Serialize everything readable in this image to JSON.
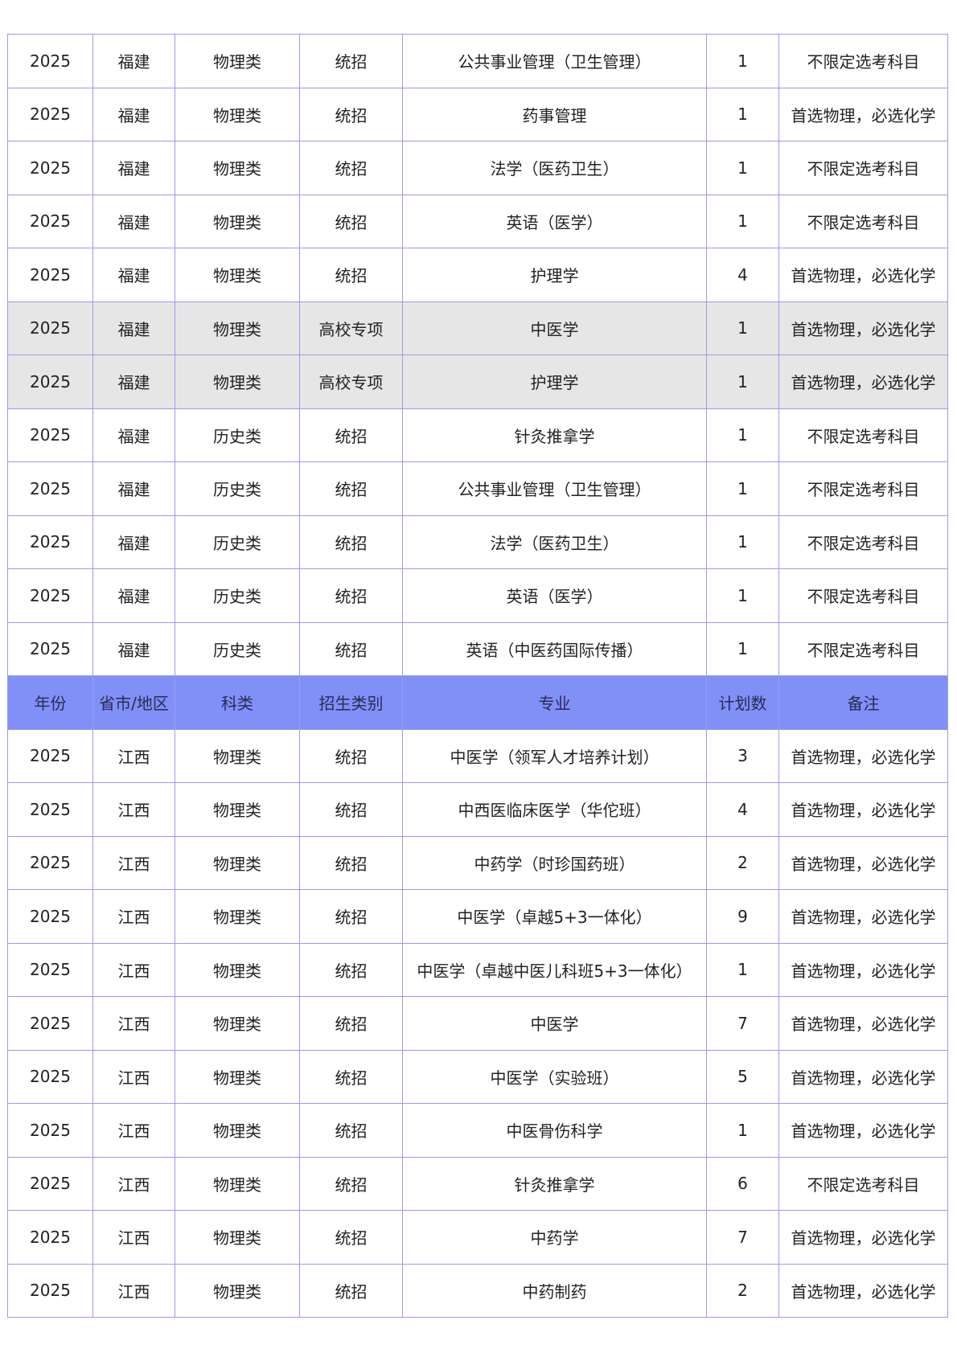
{
  "header_row": [
    "年份",
    "省市/地区",
    "科类",
    "招生类别",
    "专业",
    "计划数",
    "备注"
  ],
  "colors": {
    "header_bg": "#8190f7",
    "highlight_row_bg": "#e6e6e6",
    "border": "#9a9af0"
  },
  "rows_before_header": [
    {
      "cells": [
        "2025",
        "福建",
        "物理类",
        "统招",
        "公共事业管理（卫生管理）",
        "1",
        "不限定选考科目"
      ],
      "highlighted": false
    },
    {
      "cells": [
        "2025",
        "福建",
        "物理类",
        "统招",
        "药事管理",
        "1",
        "首选物理，必选化学"
      ],
      "highlighted": false
    },
    {
      "cells": [
        "2025",
        "福建",
        "物理类",
        "统招",
        "法学（医药卫生）",
        "1",
        "不限定选考科目"
      ],
      "highlighted": false
    },
    {
      "cells": [
        "2025",
        "福建",
        "物理类",
        "统招",
        "英语（医学）",
        "1",
        "不限定选考科目"
      ],
      "highlighted": false
    },
    {
      "cells": [
        "2025",
        "福建",
        "物理类",
        "统招",
        "护理学",
        "4",
        "首选物理，必选化学"
      ],
      "highlighted": false
    },
    {
      "cells": [
        "2025",
        "福建",
        "物理类",
        "高校专项",
        "中医学",
        "1",
        "首选物理，必选化学"
      ],
      "highlighted": true
    },
    {
      "cells": [
        "2025",
        "福建",
        "物理类",
        "高校专项",
        "护理学",
        "1",
        "首选物理，必选化学"
      ],
      "highlighted": true
    },
    {
      "cells": [
        "2025",
        "福建",
        "历史类",
        "统招",
        "针灸推拿学",
        "1",
        "不限定选考科目"
      ],
      "highlighted": false
    },
    {
      "cells": [
        "2025",
        "福建",
        "历史类",
        "统招",
        "公共事业管理（卫生管理）",
        "1",
        "不限定选考科目"
      ],
      "highlighted": false
    },
    {
      "cells": [
        "2025",
        "福建",
        "历史类",
        "统招",
        "法学（医药卫生）",
        "1",
        "不限定选考科目"
      ],
      "highlighted": false
    },
    {
      "cells": [
        "2025",
        "福建",
        "历史类",
        "统招",
        "英语（医学）",
        "1",
        "不限定选考科目"
      ],
      "highlighted": false
    },
    {
      "cells": [
        "2025",
        "福建",
        "历史类",
        "统招",
        "英语（中医药国际传播）",
        "1",
        "不限定选考科目"
      ],
      "highlighted": false
    }
  ],
  "rows_after_header": [
    {
      "cells": [
        "2025",
        "江西",
        "物理类",
        "统招",
        "中医学（领军人才培养计划）",
        "3",
        "首选物理，必选化学"
      ],
      "highlighted": false
    },
    {
      "cells": [
        "2025",
        "江西",
        "物理类",
        "统招",
        "中西医临床医学（华佗班）",
        "4",
        "首选物理，必选化学"
      ],
      "highlighted": false
    },
    {
      "cells": [
        "2025",
        "江西",
        "物理类",
        "统招",
        "中药学（时珍国药班）",
        "2",
        "首选物理，必选化学"
      ],
      "highlighted": false
    },
    {
      "cells": [
        "2025",
        "江西",
        "物理类",
        "统招",
        "中医学（卓越5+3一体化）",
        "9",
        "首选物理，必选化学"
      ],
      "highlighted": false
    },
    {
      "cells": [
        "2025",
        "江西",
        "物理类",
        "统招",
        "中医学（卓越中医儿科班5+3一体化）",
        "1",
        "首选物理，必选化学"
      ],
      "highlighted": false
    },
    {
      "cells": [
        "2025",
        "江西",
        "物理类",
        "统招",
        "中医学",
        "7",
        "首选物理，必选化学"
      ],
      "highlighted": false
    },
    {
      "cells": [
        "2025",
        "江西",
        "物理类",
        "统招",
        "中医学（实验班）",
        "5",
        "首选物理，必选化学"
      ],
      "highlighted": false
    },
    {
      "cells": [
        "2025",
        "江西",
        "物理类",
        "统招",
        "中医骨伤科学",
        "1",
        "首选物理，必选化学"
      ],
      "highlighted": false
    },
    {
      "cells": [
        "2025",
        "江西",
        "物理类",
        "统招",
        "针灸推拿学",
        "6",
        "不限定选考科目"
      ],
      "highlighted": false
    },
    {
      "cells": [
        "2025",
        "江西",
        "物理类",
        "统招",
        "中药学",
        "7",
        "首选物理，必选化学"
      ],
      "highlighted": false
    },
    {
      "cells": [
        "2025",
        "江西",
        "物理类",
        "统招",
        "中药制药",
        "2",
        "首选物理，必选化学"
      ],
      "highlighted": false
    }
  ]
}
